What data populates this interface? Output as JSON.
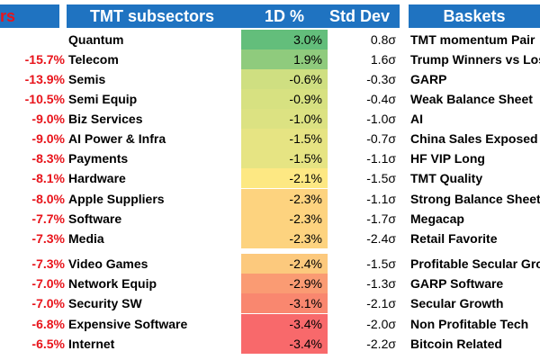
{
  "left_panel": {
    "header_fragment": "rs",
    "values": [
      "-15.7%",
      "-13.9%",
      "-10.5%",
      "-9.0%",
      "-9.0%",
      "-8.3%",
      "-8.1%",
      "-8.0%",
      "-7.7%",
      "-7.3%",
      "-7.3%",
      "-7.0%",
      "-7.0%",
      "-6.8%",
      "-6.5%"
    ]
  },
  "middle_panel": {
    "headers": {
      "name": "TMT subsectors",
      "pct": "1D %",
      "std": "Std Dev"
    },
    "rows": [
      {
        "name": "Quantum",
        "pct": "3.0%",
        "std": "0.8σ",
        "color": "#63be7b"
      },
      {
        "name": "Telecom",
        "pct": "1.9%",
        "std": "1.6σ",
        "color": "#8fcb7d"
      },
      {
        "name": "Semis",
        "pct": "-0.6%",
        "std": "-0.3σ",
        "color": "#cfdf81"
      },
      {
        "name": "Semi Equip",
        "pct": "-0.9%",
        "std": "-0.4σ",
        "color": "#d7e181"
      },
      {
        "name": "Biz Services",
        "pct": "-1.0%",
        "std": "-1.0σ",
        "color": "#dce282"
      },
      {
        "name": "AI Power & Infra",
        "pct": "-1.5%",
        "std": "-0.7σ",
        "color": "#e6e483"
      },
      {
        "name": "Payments",
        "pct": "-1.5%",
        "std": "-1.1σ",
        "color": "#e6e483"
      },
      {
        "name": "Hardware",
        "pct": "-2.1%",
        "std": "-1.5σ",
        "color": "#fde883"
      },
      {
        "name": "Apple Suppliers",
        "pct": "-2.3%",
        "std": "-1.1σ",
        "color": "#fdd37f"
      },
      {
        "name": "Software",
        "pct": "-2.3%",
        "std": "-1.7σ",
        "color": "#fdd37f"
      },
      {
        "name": "Media",
        "pct": "-2.3%",
        "std": "-2.4σ",
        "color": "#fdd37f"
      },
      {
        "name": "Video Games",
        "pct": "-2.4%",
        "std": "-1.5σ",
        "color": "#fcc97d"
      },
      {
        "name": "Network Equip",
        "pct": "-2.9%",
        "std": "-1.3σ",
        "color": "#fa9b73"
      },
      {
        "name": "Security SW",
        "pct": "-3.1%",
        "std": "-2.1σ",
        "color": "#f9876f"
      },
      {
        "name": "Expensive Software",
        "pct": "-3.4%",
        "std": "-2.0σ",
        "color": "#f8696b"
      },
      {
        "name": "Internet",
        "pct": "-3.4%",
        "std": "-2.2σ",
        "color": "#f8696b"
      }
    ]
  },
  "right_panel": {
    "header": "Baskets",
    "items": [
      "TMT momentum Pair",
      "Trump Winners vs Los",
      "GARP",
      "Weak Balance Sheet",
      "AI",
      "China Sales Exposed",
      "HF VIP Long",
      "TMT Quality",
      "Strong Balance Sheet",
      "Megacap",
      "Retail Favorite",
      "Profitable Secular Gro",
      "GARP Software",
      "Secular Growth",
      "Non Profitable Tech",
      "Bitcoin Related"
    ]
  }
}
